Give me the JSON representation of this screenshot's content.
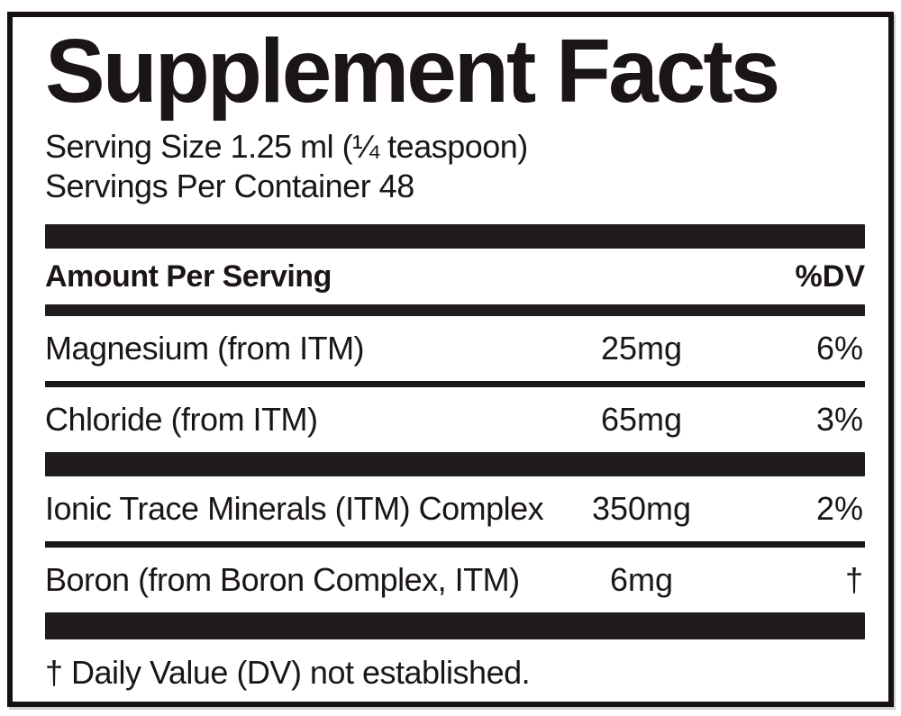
{
  "label": {
    "title": "Supplement Facts",
    "serving": {
      "size_line": "Serving Size 1.25 ml (¼ teaspoon)",
      "container_line": "Servings Per Container 48"
    },
    "header": {
      "amount_label": "Amount Per Serving",
      "dv_label": "%DV"
    },
    "rows": [
      {
        "name": "Magnesium (from ITM)",
        "amount": "25mg",
        "dv": "6%"
      },
      {
        "name": "Chloride (from ITM)",
        "amount": "65mg",
        "dv": "3%"
      },
      {
        "name": "Ionic Trace Minerals (ITM) Complex",
        "amount": "350mg",
        "dv": "2%"
      },
      {
        "name": "Boron (from Boron Complex, ITM)",
        "amount": "6mg",
        "dv": "†"
      }
    ],
    "footnote": "† Daily Value (DV) not established.",
    "colors": {
      "ink": "#1b1518",
      "bar": "#201b1e",
      "background": "#ffffff"
    }
  }
}
